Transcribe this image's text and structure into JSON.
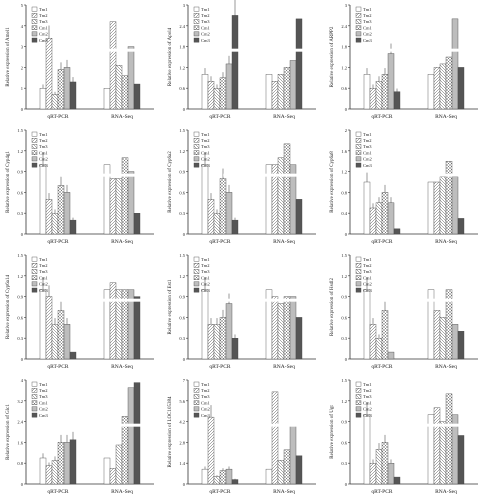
{
  "figure": {
    "groups": [
      "qRT-PCR",
      "RNA-Seq"
    ],
    "series_names": [
      "Tm1",
      "Tm2",
      "Tm3",
      "Cm1",
      "Cm2",
      "Cm3"
    ],
    "colors": [
      "#ffffff",
      "#eeeeee",
      "#d8d8d8",
      "#bdbdbd",
      "#8a8a8a",
      "#4a4a4a"
    ]
  },
  "chart_data": [
    {
      "type": "bar",
      "ylabel": "Relative expression of Amel1",
      "categories": [
        "qRT-PCR",
        "RNA-Seq"
      ],
      "series": [
        {
          "name": "Tm1",
          "values": [
            1.0,
            1.0
          ]
        },
        {
          "name": "Tm2",
          "values": [
            3.4,
            4.2
          ]
        },
        {
          "name": "Tm3",
          "values": [
            0.7,
            2.1
          ]
        },
        {
          "name": "Cm1",
          "values": [
            1.9,
            1.6
          ]
        },
        {
          "name": "Cm2",
          "values": [
            2.0,
            3.0
          ]
        },
        {
          "name": "Cm3",
          "values": [
            1.3,
            1.2
          ]
        }
      ],
      "ylim": [
        0,
        5
      ],
      "break": true
    },
    {
      "type": "bar",
      "ylabel": "Relative expression of Apol4",
      "categories": [
        "qRT-PCR",
        "RNA-Seq"
      ],
      "series": [
        {
          "name": "Tm1",
          "values": [
            1.0,
            1.0
          ]
        },
        {
          "name": "Tm2",
          "values": [
            0.8,
            0.8
          ]
        },
        {
          "name": "Tm3",
          "values": [
            0.6,
            1.0
          ]
        },
        {
          "name": "Cm1",
          "values": [
            0.9,
            1.2
          ]
        },
        {
          "name": "Cm2",
          "values": [
            1.3,
            1.4
          ]
        },
        {
          "name": "Cm3",
          "values": [
            2.7,
            2.6
          ]
        }
      ],
      "ylim": [
        0,
        3
      ],
      "break": true
    },
    {
      "type": "bar",
      "ylabel": "Relative expression of ARPP2",
      "categories": [
        "qRT-PCR",
        "RNA-Seq"
      ],
      "series": [
        {
          "name": "Tm1",
          "values": [
            1.0,
            1.0
          ]
        },
        {
          "name": "Tm2",
          "values": [
            0.6,
            1.2
          ]
        },
        {
          "name": "Tm3",
          "values": [
            0.8,
            1.3
          ]
        },
        {
          "name": "Cm1",
          "values": [
            1.0,
            1.5
          ]
        },
        {
          "name": "Cm2",
          "values": [
            1.6,
            2.6
          ]
        },
        {
          "name": "Cm3",
          "values": [
            0.5,
            1.2
          ]
        }
      ],
      "ylim": [
        0,
        3
      ],
      "break": true
    },
    {
      "type": "bar",
      "ylabel": "Relative expression of Cyp4g1",
      "categories": [
        "qRT-PCR",
        "RNA-Seq"
      ],
      "series": [
        {
          "name": "Tm1",
          "values": [
            1.0,
            1.0
          ]
        },
        {
          "name": "Tm2",
          "values": [
            0.5,
            0.8
          ]
        },
        {
          "name": "Tm3",
          "values": [
            0.3,
            0.8
          ]
        },
        {
          "name": "Cm1",
          "values": [
            0.7,
            1.1
          ]
        },
        {
          "name": "Cm2",
          "values": [
            0.6,
            0.9
          ]
        },
        {
          "name": "Cm3",
          "values": [
            0.2,
            0.3
          ]
        }
      ],
      "ylim": [
        0,
        1.5
      ],
      "break": true
    },
    {
      "type": "bar",
      "ylabel": "Relative expression of Cyp6a2",
      "categories": [
        "qRT-PCR",
        "RNA-Seq"
      ],
      "series": [
        {
          "name": "Tm1",
          "values": [
            1.0,
            1.0
          ]
        },
        {
          "name": "Tm2",
          "values": [
            0.5,
            1.0
          ]
        },
        {
          "name": "Tm3",
          "values": [
            0.3,
            1.1
          ]
        },
        {
          "name": "Cm1",
          "values": [
            0.8,
            1.3
          ]
        },
        {
          "name": "Cm2",
          "values": [
            0.6,
            1.0
          ]
        },
        {
          "name": "Cm3",
          "values": [
            0.2,
            0.5
          ]
        }
      ],
      "ylim": [
        0,
        1.5
      ],
      "break": true
    },
    {
      "type": "bar",
      "ylabel": "Relative expression of Cyp6a8",
      "categories": [
        "qRT-PCR",
        "RNA-Seq"
      ],
      "series": [
        {
          "name": "Tm1",
          "values": [
            1.0,
            1.0
          ]
        },
        {
          "name": "Tm2",
          "values": [
            0.5,
            1.0
          ]
        },
        {
          "name": "Tm3",
          "values": [
            0.6,
            1.1
          ]
        },
        {
          "name": "Cm1",
          "values": [
            0.8,
            1.4
          ]
        },
        {
          "name": "Cm2",
          "values": [
            0.6,
            1.1
          ]
        },
        {
          "name": "Cm3",
          "values": [
            0.1,
            0.3
          ]
        }
      ],
      "ylim": [
        0,
        2
      ],
      "break": true
    },
    {
      "type": "bar",
      "ylabel": "Relative expression of Cyp6a14",
      "categories": [
        "qRT-PCR",
        "RNA-Seq"
      ],
      "series": [
        {
          "name": "Tm1",
          "values": [
            1.0,
            1.0
          ]
        },
        {
          "name": "Tm2",
          "values": [
            0.9,
            1.1
          ]
        },
        {
          "name": "Tm3",
          "values": [
            0.5,
            1.0
          ]
        },
        {
          "name": "Cm1",
          "values": [
            0.7,
            1.0
          ]
        },
        {
          "name": "Cm2",
          "values": [
            0.5,
            1.0
          ]
        },
        {
          "name": "Cm3",
          "values": [
            0.1,
            0.9
          ]
        }
      ],
      "ylim": [
        0,
        1.5
      ],
      "break": true
    },
    {
      "type": "bar",
      "ylabel": "Relative expression of Est1",
      "categories": [
        "qRT-PCR",
        "RNA-Seq"
      ],
      "series": [
        {
          "name": "Tm1",
          "values": [
            1.0,
            1.0
          ]
        },
        {
          "name": "Tm2",
          "values": [
            0.5,
            0.9
          ]
        },
        {
          "name": "Tm3",
          "values": [
            0.5,
            0.8
          ]
        },
        {
          "name": "Cm1",
          "values": [
            0.6,
            0.9
          ]
        },
        {
          "name": "Cm2",
          "values": [
            0.8,
            0.9
          ]
        },
        {
          "name": "Cm3",
          "values": [
            0.3,
            0.6
          ]
        }
      ],
      "ylim": [
        0,
        1.5
      ],
      "break": true
    },
    {
      "type": "bar",
      "ylabel": "Relative expression of Hsdl2",
      "categories": [
        "qRT-PCR",
        "RNA-Seq"
      ],
      "series": [
        {
          "name": "Tm1",
          "values": [
            1.0,
            1.0
          ]
        },
        {
          "name": "Tm2",
          "values": [
            0.5,
            0.7
          ]
        },
        {
          "name": "Tm3",
          "values": [
            0.3,
            0.6
          ]
        },
        {
          "name": "Cm1",
          "values": [
            0.7,
            1.0
          ]
        },
        {
          "name": "Cm2",
          "values": [
            0.1,
            0.5
          ]
        },
        {
          "name": "Cm3",
          "values": [
            0.0,
            0.4
          ]
        }
      ],
      "ylim": [
        0,
        1.5
      ],
      "break": true
    },
    {
      "type": "bar",
      "ylabel": "Relative expression of Glc1",
      "categories": [
        "qRT-PCR",
        "RNA-Seq"
      ],
      "series": [
        {
          "name": "Tm1",
          "values": [
            1.0,
            1.0
          ]
        },
        {
          "name": "Tm2",
          "values": [
            0.7,
            0.6
          ]
        },
        {
          "name": "Tm3",
          "values": [
            0.9,
            1.5
          ]
        },
        {
          "name": "Cm1",
          "values": [
            1.6,
            2.6
          ]
        },
        {
          "name": "Cm2",
          "values": [
            1.6,
            3.7
          ]
        },
        {
          "name": "Cm3",
          "values": [
            1.7,
            3.9
          ]
        }
      ],
      "ylim": [
        0,
        4
      ],
      "break": true
    },
    {
      "type": "bar",
      "ylabel": "Relative expression of LOC105384",
      "categories": [
        "qRT-PCR",
        "RNA-Seq"
      ],
      "series": [
        {
          "name": "Tm1",
          "values": [
            1.0,
            1.0
          ]
        },
        {
          "name": "Tm2",
          "values": [
            4.5,
            6.2
          ]
        },
        {
          "name": "Tm3",
          "values": [
            0.5,
            1.6
          ]
        },
        {
          "name": "Cm1",
          "values": [
            0.9,
            2.3
          ]
        },
        {
          "name": "Cm2",
          "values": [
            1.0,
            4.0
          ]
        },
        {
          "name": "Cm3",
          "values": [
            0.3,
            1.9
          ]
        }
      ],
      "ylim": [
        0,
        7
      ],
      "break": true
    },
    {
      "type": "bar",
      "ylabel": "Relative expression of Ugt",
      "categories": [
        "qRT-PCR",
        "RNA-Seq"
      ],
      "series": [
        {
          "name": "Tm1",
          "values": [
            1.0,
            1.0
          ]
        },
        {
          "name": "Tm2",
          "values": [
            0.3,
            1.1
          ]
        },
        {
          "name": "Tm3",
          "values": [
            0.5,
            0.9
          ]
        },
        {
          "name": "Cm1",
          "values": [
            0.6,
            1.3
          ]
        },
        {
          "name": "Cm2",
          "values": [
            0.3,
            1.0
          ]
        },
        {
          "name": "Cm3",
          "values": [
            0.1,
            0.7
          ]
        }
      ],
      "ylim": [
        0,
        1.5
      ],
      "break": true
    }
  ]
}
